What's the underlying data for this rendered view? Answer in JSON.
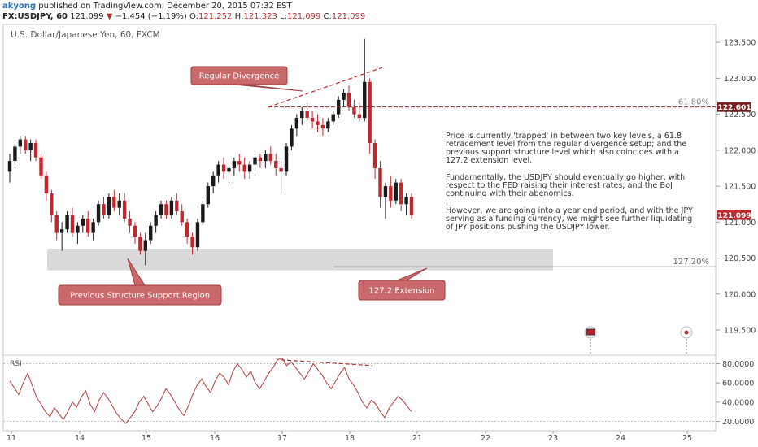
{
  "header": {
    "author": "akyong",
    "published": "published on TradingView.com, December 20, 2015 07:32 EST",
    "symbol": "FX:USDJPY, 60",
    "last": "121.099",
    "arrow": "▼",
    "change": "−1.454 (−1.19%)",
    "o_label": "O:",
    "o": "121.252",
    "h_label": "H:",
    "h": "121.323",
    "l_label": "L:",
    "l": "121.099",
    "c_label": "C:",
    "c": "121.099"
  },
  "chart_title": "U.S. Dollar/Japanese Yen, 60, FXCM",
  "annotations": {
    "regular_divergence": "Regular Divergence",
    "support_region": "Previous Structure Support Region",
    "extension": "127.2 Extension",
    "fib_618": "61.80%",
    "fib_1272": "127.20%",
    "price_line_label": "122.601",
    "last_price_label": "121.099"
  },
  "commentary": {
    "p1": "Price is currently 'trapped' in between two key levels, a 61.8 retracement level from the regular divergence setup; and the previous support structure level which also coincides with a 127.2 extension level.",
    "p2": "Fundamentally, the USDJPY should eventually go higher, with respect to the FED raising their interest rates; and the BoJ continuing with their abenomics.",
    "p3": "However, we are going into a year end period, and with the JPY serving as a funding currency, we might see further liquidating of JPY positions pushing the USDJPY lower."
  },
  "colors": {
    "bull": "#1a1a1a",
    "bear": "#c0282d",
    "label_bg": "#c9696b",
    "label_border": "#9e3b3d",
    "support_zone": "#d9d9d9",
    "fib_line": "#8b2b2b",
    "rsi_line": "#b33a3a"
  },
  "chart_data": {
    "type": "candlestick",
    "price_axis": {
      "ticks": [
        "123.500",
        "123.000",
        "122.500",
        "122.000",
        "121.500",
        "121.000",
        "120.500",
        "120.000",
        "119.500"
      ],
      "range": [
        119.15,
        123.75
      ]
    },
    "time_axis": {
      "ticks": [
        "11",
        "14",
        "15",
        "16",
        "17",
        "18",
        "21",
        "22",
        "23",
        "24",
        "25"
      ]
    },
    "levels": {
      "fib_618": 122.601,
      "fib_1272": 120.38,
      "support_zone": [
        120.33,
        120.63
      ],
      "last": 121.099
    },
    "candles": [
      [
        121.7,
        121.95,
        121.55,
        121.85
      ],
      [
        121.85,
        122.15,
        121.75,
        122.05
      ],
      [
        122.05,
        122.2,
        121.95,
        122.15
      ],
      [
        122.15,
        122.2,
        121.95,
        122.0
      ],
      [
        122.0,
        122.15,
        121.85,
        122.1
      ],
      [
        122.1,
        122.15,
        121.85,
        121.9
      ],
      [
        121.9,
        121.95,
        121.6,
        121.65
      ],
      [
        121.65,
        121.7,
        121.3,
        121.4
      ],
      [
        121.4,
        121.45,
        121.0,
        121.1
      ],
      [
        121.1,
        121.15,
        120.75,
        120.85
      ],
      [
        120.85,
        121.0,
        120.6,
        120.9
      ],
      [
        120.9,
        121.15,
        120.85,
        121.1
      ],
      [
        121.1,
        121.2,
        120.8,
        120.85
      ],
      [
        120.85,
        121.0,
        120.7,
        120.95
      ],
      [
        120.95,
        121.1,
        120.85,
        121.05
      ],
      [
        121.05,
        121.15,
        120.8,
        120.85
      ],
      [
        120.85,
        121.05,
        120.75,
        121.0
      ],
      [
        121.0,
        121.3,
        120.95,
        121.25
      ],
      [
        121.25,
        121.35,
        121.05,
        121.1
      ],
      [
        121.1,
        121.4,
        121.05,
        121.35
      ],
      [
        121.35,
        121.45,
        121.15,
        121.2
      ],
      [
        121.2,
        121.4,
        121.1,
        121.3
      ],
      [
        121.3,
        121.4,
        121.0,
        121.05
      ],
      [
        121.05,
        121.15,
        120.85,
        120.95
      ],
      [
        120.95,
        121.0,
        120.7,
        120.8
      ],
      [
        120.8,
        120.85,
        120.55,
        120.6
      ],
      [
        120.6,
        120.85,
        120.4,
        120.75
      ],
      [
        120.75,
        121.0,
        120.7,
        120.95
      ],
      [
        120.95,
        121.15,
        120.85,
        121.1
      ],
      [
        121.1,
        121.3,
        121.05,
        121.25
      ],
      [
        121.25,
        121.3,
        121.05,
        121.1
      ],
      [
        121.1,
        121.35,
        121.05,
        121.3
      ],
      [
        121.3,
        121.4,
        121.1,
        121.15
      ],
      [
        121.15,
        121.25,
        120.95,
        121.0
      ],
      [
        121.0,
        121.05,
        120.7,
        120.8
      ],
      [
        120.8,
        120.85,
        120.55,
        120.65
      ],
      [
        120.65,
        121.05,
        120.6,
        121.0
      ],
      [
        121.0,
        121.3,
        120.95,
        121.25
      ],
      [
        121.25,
        121.55,
        121.2,
        121.5
      ],
      [
        121.5,
        121.7,
        121.4,
        121.65
      ],
      [
        121.65,
        121.85,
        121.55,
        121.8
      ],
      [
        121.8,
        121.9,
        121.6,
        121.7
      ],
      [
        121.7,
        121.8,
        121.55,
        121.75
      ],
      [
        121.75,
        121.9,
        121.65,
        121.85
      ],
      [
        121.85,
        121.95,
        121.7,
        121.8
      ],
      [
        121.8,
        121.9,
        121.6,
        121.7
      ],
      [
        121.7,
        121.85,
        121.6,
        121.8
      ],
      [
        121.8,
        121.95,
        121.7,
        121.9
      ],
      [
        121.9,
        121.95,
        121.75,
        121.85
      ],
      [
        121.85,
        122.0,
        121.75,
        121.95
      ],
      [
        121.95,
        122.05,
        121.8,
        121.85
      ],
      [
        121.85,
        121.95,
        121.65,
        121.75
      ],
      [
        121.75,
        121.85,
        121.4,
        121.7
      ],
      [
        121.7,
        122.1,
        121.65,
        122.05
      ],
      [
        122.05,
        122.35,
        122.0,
        122.3
      ],
      [
        122.3,
        122.5,
        122.2,
        122.45
      ],
      [
        122.45,
        122.6,
        122.35,
        122.55
      ],
      [
        122.55,
        122.65,
        122.4,
        122.45
      ],
      [
        122.45,
        122.55,
        122.3,
        122.4
      ],
      [
        122.4,
        122.5,
        122.25,
        122.35
      ],
      [
        122.35,
        122.45,
        122.2,
        122.3
      ],
      [
        122.3,
        122.45,
        122.25,
        122.4
      ],
      [
        122.4,
        122.55,
        122.35,
        122.5
      ],
      [
        122.5,
        122.75,
        122.45,
        122.7
      ],
      [
        122.7,
        122.85,
        122.6,
        122.8
      ],
      [
        122.8,
        122.9,
        122.55,
        122.6
      ],
      [
        122.6,
        122.7,
        122.45,
        122.5
      ],
      [
        122.5,
        122.65,
        122.4,
        122.45
      ],
      [
        122.45,
        123.55,
        122.4,
        122.95
      ],
      [
        122.95,
        123.0,
        121.95,
        122.1
      ],
      [
        122.1,
        122.15,
        121.6,
        121.75
      ],
      [
        121.75,
        121.85,
        121.2,
        121.35
      ],
      [
        121.35,
        121.55,
        121.05,
        121.5
      ],
      [
        121.5,
        121.65,
        121.2,
        121.3
      ],
      [
        121.3,
        121.6,
        121.25,
        121.55
      ],
      [
        121.55,
        121.6,
        121.15,
        121.25
      ],
      [
        121.25,
        121.4,
        121.1,
        121.35
      ],
      [
        121.35,
        121.4,
        121.05,
        121.1
      ]
    ],
    "rsi": {
      "axis_ticks": [
        "80.0000",
        "60.0000",
        "40.0000",
        "20.0000"
      ],
      "range": [
        12,
        88
      ],
      "series_name": "RSI",
      "values": [
        62,
        55,
        48,
        60,
        70,
        58,
        45,
        38,
        30,
        25,
        34,
        28,
        22,
        30,
        40,
        35,
        45,
        52,
        38,
        30,
        42,
        50,
        44,
        36,
        28,
        22,
        18,
        24,
        30,
        40,
        46,
        38,
        30,
        36,
        44,
        54,
        48,
        40,
        32,
        26,
        36,
        48,
        58,
        64,
        56,
        50,
        62,
        70,
        66,
        58,
        72,
        80,
        74,
        66,
        72,
        60,
        54,
        62,
        70,
        76,
        84,
        86,
        78,
        82,
        76,
        70,
        64,
        72,
        80,
        74,
        68,
        60,
        54,
        62,
        70,
        76,
        64,
        58,
        50,
        40,
        34,
        42,
        38,
        30,
        24,
        34,
        40,
        46,
        42,
        36,
        30
      ]
    },
    "divergence_price": [
      [
        0,
        122.6
      ],
      [
        1,
        123.15
      ]
    ],
    "divergence_rsi": [
      [
        0,
        84
      ],
      [
        1,
        78
      ]
    ]
  }
}
